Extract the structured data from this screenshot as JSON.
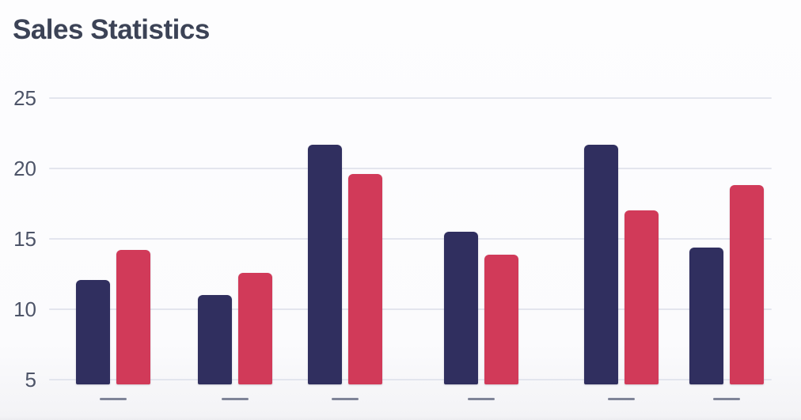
{
  "page": {
    "title": "Sales Statistics"
  },
  "colors": {
    "background": "#fcfcfd",
    "title_text": "#3c4356",
    "tick_text": "#4d5468",
    "gridline": "#e3e5ee",
    "x_dash": "#7f8498",
    "series_navy": "#302f5f",
    "series_crimson": "#d13a59"
  },
  "chart_data": {
    "type": "bar",
    "title": "Sales Statistics",
    "categories": [
      "",
      "",
      "",
      "",
      "",
      ""
    ],
    "x_axis_label_style": "dash-placeholder (no text labels, only short dashes under each group)",
    "series": [
      {
        "name": "navy",
        "color": "#302f5f",
        "values": [
          12.1,
          11.0,
          21.7,
          15.5,
          21.7,
          14.4
        ]
      },
      {
        "name": "crimson",
        "color": "#d13a59",
        "values": [
          14.2,
          12.6,
          19.6,
          13.9,
          17.0,
          18.8
        ]
      }
    ],
    "xlabel": "",
    "ylabel": "",
    "y_ticks": [
      25,
      20,
      15,
      10,
      5
    ],
    "ylim": [
      4.6,
      26
    ],
    "grid": true,
    "legend": false
  }
}
